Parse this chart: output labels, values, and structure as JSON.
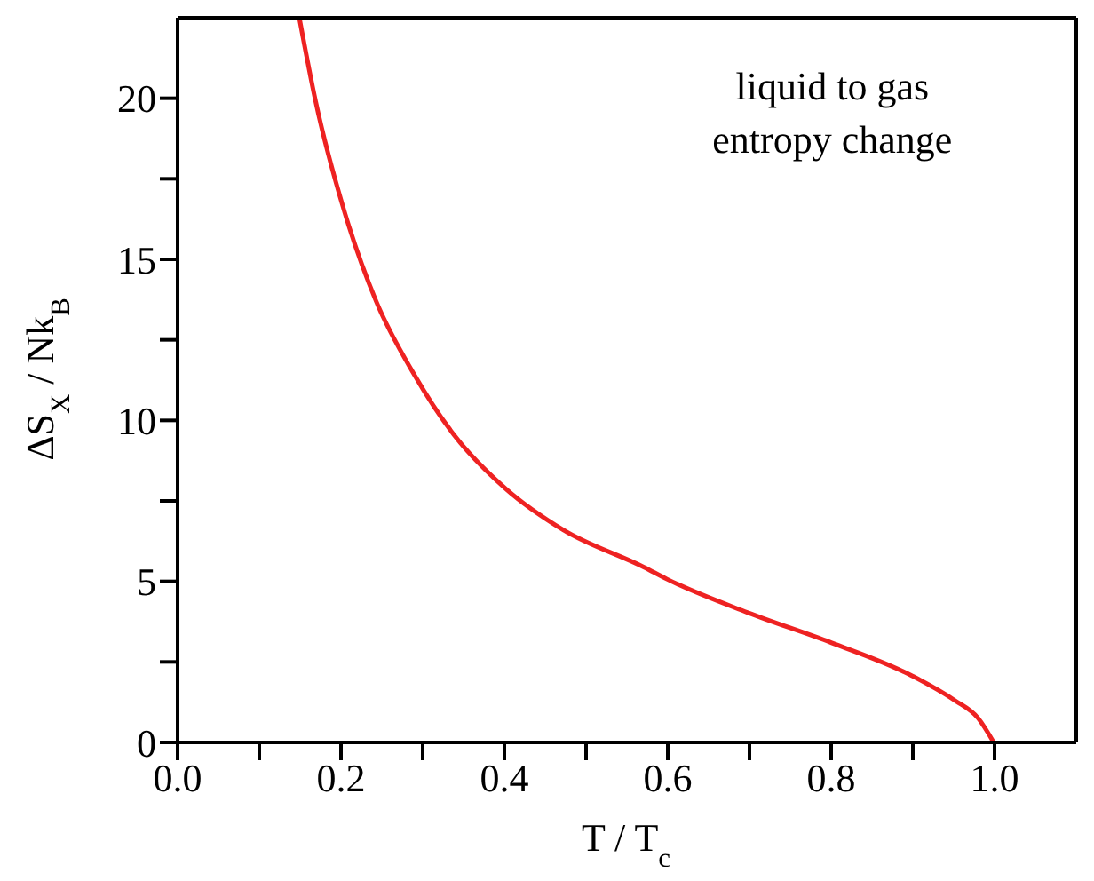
{
  "chart_data": {
    "type": "line",
    "xlabel": "T / T$_{c}$",
    "ylabel": "ΔS$_{X}$ / Nk$_{B}$",
    "annotations": [
      "liquid to gas entropy change"
    ],
    "xlim": [
      0,
      1.1
    ],
    "xticks": [
      {
        "value": 0,
        "label": "0.0"
      },
      {
        "value": 0.1,
        "label": null
      },
      {
        "value": 0.2,
        "label": "0.2"
      },
      {
        "value": 0.3,
        "label": null
      },
      {
        "value": 0.4,
        "label": "0.4"
      },
      {
        "value": 0.5,
        "label": null
      },
      {
        "value": 0.6,
        "label": "0.6"
      },
      {
        "value": 0.7,
        "label": null
      },
      {
        "value": 0.8,
        "label": "0.8"
      },
      {
        "value": 0.9,
        "label": null
      },
      {
        "value": 1,
        "label": "1.0"
      }
    ],
    "ylim": [
      0,
      22.5
    ],
    "yticks": [
      0,
      {
        "value": 2.5,
        "label": null
      },
      5,
      {
        "value": 7.5,
        "label": null
      },
      10,
      {
        "value": 12.5,
        "label": null
      },
      15,
      {
        "value": 17.5,
        "label": null
      },
      20
    ],
    "marker": "none",
    "line_style": "solid",
    "series": [
      {
        "color": "#ee2222",
        "x": [
          0.149,
          0.169,
          0.204,
          0.243,
          0.289,
          0.338,
          0.402,
          0.472,
          0.571,
          0.599,
          0.698,
          0.8,
          0.899,
          0.951,
          0.98,
          0.999
        ],
        "values": [
          22.5,
          19.9,
          16.5,
          13.7,
          11.45,
          9.56,
          7.87,
          6.6,
          5.44,
          5.07,
          4.03,
          3.1,
          2.07,
          1.31,
          0.75,
          0
        ]
      }
    ]
  }
}
